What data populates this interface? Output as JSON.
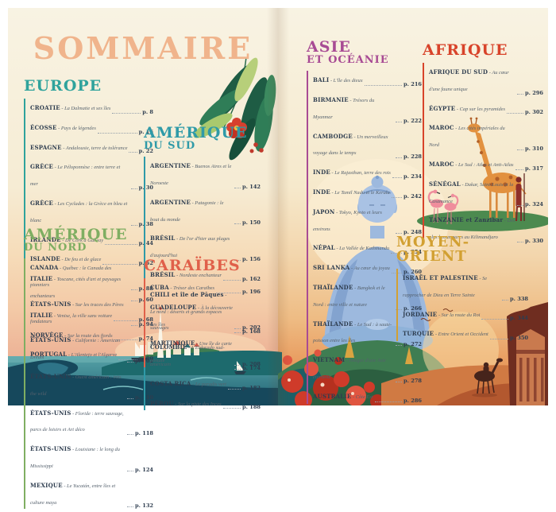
{
  "title": "SOMMAIRE",
  "title_color": "#f0b48c",
  "separator": "-",
  "sections": [
    {
      "name": "europe",
      "title1": "EUROPE",
      "title2": "",
      "color": "#2fa39c",
      "entries": [
        {
          "country": "CROATIE",
          "subtitle": "La Dalmatie et ses îles",
          "page": "p. 8"
        },
        {
          "country": "ÉCOSSE",
          "subtitle": "Pays de légendes",
          "page": "p. 16"
        },
        {
          "country": "ESPAGNE",
          "subtitle": "Andalousie, terre de tolérance",
          "page": "p. 22"
        },
        {
          "country": "GRÈCE",
          "subtitle": "Le Péloponnèse : entre terre et mer",
          "page": "p. 30"
        },
        {
          "country": "GRÈCE",
          "subtitle": "Les Cyclades : la Grèce en bleu et blanc",
          "page": "p. 38"
        },
        {
          "country": "IRLANDE",
          "subtitle": "De Cork à Galway",
          "page": "p. 44"
        },
        {
          "country": "ISLANDE",
          "subtitle": "De feu et de glace",
          "page": "p. 52"
        },
        {
          "country": "ITALIE",
          "subtitle": "Toscane, cités d'art et paysages enchanteurs",
          "page": "p. 60"
        },
        {
          "country": "ITALIE",
          "subtitle": "Venise, la ville sans voiture",
          "page": "p. 68"
        },
        {
          "country": "NORVÈGE",
          "subtitle": "Sur la route des fjords",
          "page": "p. 74"
        },
        {
          "country": "PORTUGAL",
          "subtitle": "L'Alentejo et l'Algarve",
          "page": "p. 80"
        }
      ]
    },
    {
      "name": "amerique-du-nord",
      "title1": "AMÉRIQUE",
      "title2": "DU NORD",
      "color": "#7fae62",
      "entries": [
        {
          "country": "CANADA",
          "subtitle": "Québec : le Canada des pionniers",
          "page": "p. 88"
        },
        {
          "country": "ÉTATS-UNIS",
          "subtitle": "Sur les traces des Pères fondateurs",
          "page": "p. 94"
        },
        {
          "country": "ÉTATS-UNIS",
          "subtitle": "Californie : American Dream",
          "page": "p. 102"
        },
        {
          "country": "ÉTATS-UNIS",
          "subtitle": "Ouest américain : into the wild",
          "page": "p. 110"
        },
        {
          "country": "ÉTATS-UNIS",
          "subtitle": "Floride : terre sauvage, parcs de loisirs et Art déco",
          "page": "p. 118"
        },
        {
          "country": "ÉTATS-UNIS",
          "subtitle": "Louisiane : le long du Mississippi",
          "page": "p. 124"
        },
        {
          "country": "MEXIQUE",
          "subtitle": "Le Yucatán, entre îles et culture maya",
          "page": "p. 132"
        }
      ]
    },
    {
      "name": "amerique-du-sud",
      "title1": "AMÉRIQUE",
      "title2": "DU SUD",
      "color": "#2f9aa8",
      "entries": [
        {
          "country": "ARGENTINE",
          "subtitle": "Buenos Aires et le Noroeste",
          "page": "p. 142"
        },
        {
          "country": "ARGENTINE",
          "subtitle": "Patagonie : le bout du monde",
          "page": "p. 150"
        },
        {
          "country": "BRÉSIL",
          "subtitle": "De l'or d'hier aux plages d'aujourd'hui",
          "page": "p. 156"
        },
        {
          "country": "BRÉSIL",
          "subtitle": "Nordeste enchanteur",
          "page": "p. 162"
        },
        {
          "country": "CHILI et île de Pâques",
          "subtitle": "Le nord : déserts et grands espaces sauvages",
          "page": "p. 168"
        },
        {
          "country": "COLOMBIE",
          "subtitle": "L'Eldorado sud-américain",
          "page": "p. 174"
        },
        {
          "country": "COSTA RICA",
          "subtitle": "Le paradis vert",
          "page": "p. 182"
        },
        {
          "country": "PÉROU",
          "subtitle": "Sur la piste des Incas",
          "page": "p. 188"
        }
      ]
    },
    {
      "name": "caraibes",
      "title1": "CARAÏBES",
      "title2": "",
      "color": "#e0604a",
      "entries": [
        {
          "country": "CUBA",
          "subtitle": "Trésor des Caraïbes",
          "page": "p. 196"
        },
        {
          "country": "GUADELOUPE",
          "subtitle": "À la découverte des îles",
          "page": "p. 202"
        },
        {
          "country": "MARTINIQUE",
          "subtitle": "Une île de carte postale",
          "page": "p. 208"
        }
      ]
    },
    {
      "name": "asie-et-oceanie",
      "title1": "ASIE",
      "title2": "ET OCÉANIE",
      "color": "#a84b94",
      "entries": [
        {
          "country": "BALI",
          "subtitle": "L'île des dieux",
          "page": "p. 216"
        },
        {
          "country": "BIRMANIE",
          "subtitle": "Trésors du Myanmar",
          "page": "p. 222"
        },
        {
          "country": "CAMBODGE",
          "subtitle": "Un merveilleux voyage dans le temps",
          "page": "p. 228"
        },
        {
          "country": "INDE",
          "subtitle": "Le Rajasthan, terre des rois",
          "page": "p. 234"
        },
        {
          "country": "INDE",
          "subtitle": "Le Tamil Nadu et le Kerala",
          "page": "p. 242"
        },
        {
          "country": "JAPON",
          "subtitle": "Tokyo, Kyoto et leurs environs",
          "page": "p. 248"
        },
        {
          "country": "NÉPAL",
          "subtitle": "La Vallée de Kathmandu",
          "page": "p. 254"
        },
        {
          "country": "SRI LANKA",
          "subtitle": "Au cœur du joyau",
          "page": "p. 260"
        },
        {
          "country": "THAÏLANDE",
          "subtitle": "Bangkok et le Nord : entre ville et nature",
          "page": "p. 266"
        },
        {
          "country": "THAÏLANDE",
          "subtitle": "Le Sud : à saute-poisson entre les îles",
          "page": "p. 272"
        },
        {
          "country": "VIETNAM",
          "subtitle": "Images d'une Asie éternelle",
          "page": "p. 278"
        },
        {
          "country": "AUSTRALIE",
          "subtitle": "Côte Est",
          "page": "p. 286"
        }
      ]
    },
    {
      "name": "afrique",
      "title1": "AFRIQUE",
      "title2": "",
      "color": "#d8432a",
      "entries": [
        {
          "country": "AFRIQUE DU SUD",
          "subtitle": "Au cœur d'une faune unique",
          "page": "p. 296"
        },
        {
          "country": "ÉGYPTE",
          "subtitle": "Cap sur les pyramides",
          "page": "p. 302"
        },
        {
          "country": "MAROC",
          "subtitle": "Les cités impériales du Nord",
          "page": "p. 310"
        },
        {
          "country": "MAROC",
          "subtitle": "Le Sud : Atlas et Anti-Atlas",
          "page": "p. 317"
        },
        {
          "country": "SÉNÉGAL",
          "subtitle": "Dakar, Saint-Louis et la Casamance",
          "page": "p. 324"
        },
        {
          "country": "TANZANIE et Zanzibar",
          "subtitle": "Des plus beaux parcs au Kilimandjaro",
          "page": "p. 330"
        }
      ]
    },
    {
      "name": "moyen-orient",
      "title1": "MOYEN-ORIENT",
      "title2": "",
      "color": "#d2a032",
      "entries": [
        {
          "country": "ISRAËL ET PALESTINE",
          "subtitle": "Se rapprocher de Dieu en Terre Sainte",
          "page": "p. 338"
        },
        {
          "country": "JORDANIE",
          "subtitle": "Sur la route du Roi",
          "page": "p. 344"
        },
        {
          "country": "TURQUIE",
          "subtitle": "Entre Orient et Occident",
          "page": "p. 350"
        }
      ]
    }
  ]
}
